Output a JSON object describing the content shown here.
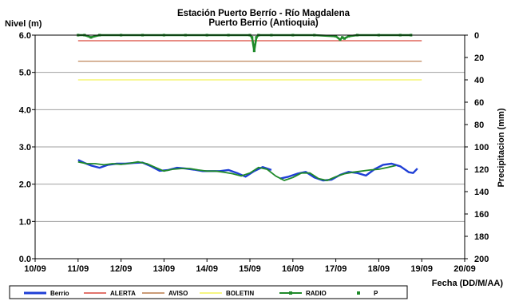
{
  "chart_data": {
    "type": "line",
    "title": "Estación Puerto Berrío - Río Magdalena",
    "subtitle": "Puerto Berrio (Antioquia)",
    "ylabel": "Nivel (m)",
    "y2label": "Precipitacion (mm)",
    "xlabel": "Fecha (DD/M/AA)",
    "x_ticks": [
      "10/09",
      "11/09",
      "12/09",
      "13/09",
      "14/09",
      "15/09",
      "16/09",
      "17/09",
      "18/09",
      "19/09",
      "20/09"
    ],
    "x_range": [
      10,
      20
    ],
    "ylim": [
      0,
      6
    ],
    "y_ticks": [
      "0.0",
      "1.0",
      "2.0",
      "3.0",
      "4.0",
      "5.0",
      "6.0"
    ],
    "y2lim": [
      0,
      200
    ],
    "y2_ticks": [
      "0",
      "20",
      "40",
      "60",
      "80",
      "100",
      "120",
      "140",
      "160",
      "180",
      "200"
    ],
    "y2_inverted": true,
    "grid": "horizontal",
    "legend_position": "bottom",
    "series": [
      {
        "name": "Berrio",
        "color": "#1f3fd6",
        "axis": "left",
        "x": [
          11.0,
          11.15,
          11.3,
          11.5,
          11.7,
          11.9,
          12.1,
          12.3,
          12.5,
          12.7,
          12.9,
          13.1,
          13.3,
          13.5,
          13.7,
          13.9,
          14.1,
          14.3,
          14.5,
          14.7,
          14.9,
          15.1,
          15.3,
          15.5
        ],
        "values": [
          2.65,
          2.57,
          2.5,
          2.44,
          2.52,
          2.55,
          2.55,
          2.57,
          2.58,
          2.48,
          2.36,
          2.38,
          2.44,
          2.42,
          2.39,
          2.35,
          2.35,
          2.35,
          2.38,
          2.3,
          2.2,
          2.35,
          2.46,
          2.38
        ]
      },
      {
        "name": "Berrio",
        "color": "#1f3fd6",
        "axis": "left",
        "x": [
          15.7,
          15.9,
          16.1,
          16.3,
          16.5,
          16.7,
          16.9,
          17.1,
          17.3,
          17.5,
          17.7,
          17.9,
          18.1,
          18.3,
          18.5,
          18.7,
          18.8,
          18.9
        ],
        "values": [
          2.15,
          2.2,
          2.28,
          2.33,
          2.18,
          2.1,
          2.12,
          2.25,
          2.33,
          2.3,
          2.23,
          2.4,
          2.52,
          2.55,
          2.48,
          2.32,
          2.3,
          2.42
        ]
      },
      {
        "name": "ALERTA",
        "color": "#d9473b",
        "axis": "left",
        "x": [
          11.0,
          19.0
        ],
        "values": [
          5.85,
          5.85
        ]
      },
      {
        "name": "AVISO",
        "color": "#b87a4a",
        "axis": "left",
        "x": [
          11.0,
          19.0
        ],
        "values": [
          5.3,
          5.3
        ]
      },
      {
        "name": "BOLETIN",
        "color": "#f3f358",
        "axis": "left",
        "x": [
          11.0,
          19.0
        ],
        "values": [
          4.8,
          4.8
        ]
      },
      {
        "name": "RADIO",
        "color": "#1f8a2a",
        "axis": "left",
        "x": [
          11.0,
          11.2,
          11.4,
          11.6,
          11.8,
          12.0,
          12.2,
          12.4,
          12.6,
          12.8,
          13.0,
          13.2,
          13.4,
          13.6,
          13.8,
          14.0,
          14.2,
          14.4,
          14.6,
          14.8,
          15.0,
          15.2,
          15.4,
          15.6,
          15.8,
          16.0,
          16.2,
          16.4,
          16.6,
          16.8,
          17.0,
          17.2,
          17.4,
          17.6,
          17.8,
          18.0,
          18.2,
          18.4
        ],
        "values": [
          2.6,
          2.55,
          2.55,
          2.52,
          2.55,
          2.53,
          2.56,
          2.6,
          2.55,
          2.45,
          2.35,
          2.4,
          2.42,
          2.42,
          2.38,
          2.35,
          2.35,
          2.32,
          2.28,
          2.22,
          2.3,
          2.45,
          2.4,
          2.22,
          2.1,
          2.18,
          2.3,
          2.3,
          2.15,
          2.1,
          2.2,
          2.28,
          2.32,
          2.35,
          2.38,
          2.4,
          2.45,
          2.5
        ]
      },
      {
        "name": "P",
        "color": "#1f8a2a",
        "axis": "right",
        "x": [
          11.0,
          11.15,
          11.3,
          11.5,
          12.0,
          12.5,
          13.0,
          13.5,
          14.0,
          14.5,
          15.0,
          15.05,
          15.1,
          15.15,
          15.2,
          15.5,
          16.0,
          16.5,
          17.0,
          17.1,
          17.15,
          17.2,
          17.3,
          17.5,
          18.0,
          18.5,
          18.75
        ],
        "values": [
          0,
          0,
          2,
          0,
          0,
          0,
          0,
          0,
          0,
          0,
          0,
          2,
          14,
          2,
          0,
          0,
          0,
          0,
          1,
          4,
          2,
          3,
          1,
          0,
          0,
          0,
          0
        ]
      }
    ],
    "legend": [
      {
        "label": "Berrio",
        "color": "#1f3fd6",
        "style": "thick"
      },
      {
        "label": "ALERTA",
        "color": "#d9473b",
        "style": "line"
      },
      {
        "label": "AVISO",
        "color": "#b87a4a",
        "style": "line"
      },
      {
        "label": "BOLETIN",
        "color": "#f3f358",
        "style": "line"
      },
      {
        "label": "RADIO",
        "color": "#1f8a2a",
        "style": "line-marker"
      },
      {
        "label": "P",
        "color": "#1f8a2a",
        "style": "marker"
      }
    ]
  }
}
